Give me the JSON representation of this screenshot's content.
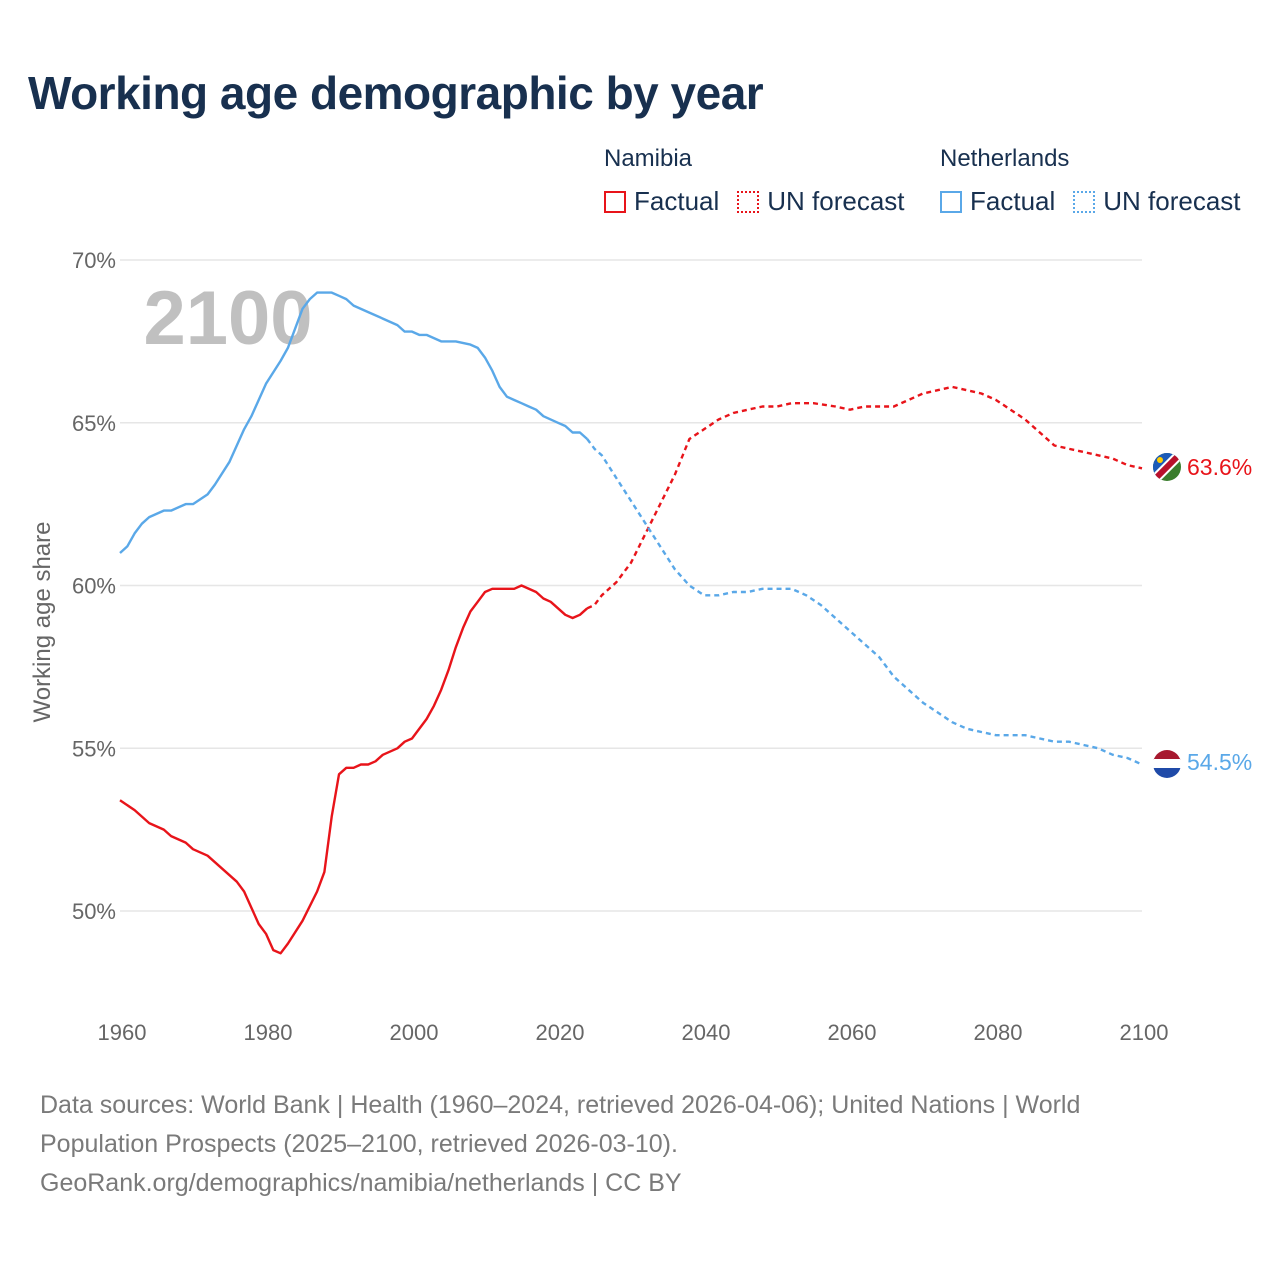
{
  "title": "Working age demographic by year",
  "legend": {
    "groups": [
      {
        "country": "Namibia",
        "factual_label": "Factual",
        "forecast_label": "UN forecast",
        "color": "#e8141a"
      },
      {
        "country": "Netherlands",
        "factual_label": "Factual",
        "forecast_label": "UN forecast",
        "color": "#5aa8e8"
      }
    ]
  },
  "sources": {
    "line1": "Data sources: World Bank | Health (1960–2024, retrieved 2026-04-06); United Nations | World",
    "line2": "Population Prospects (2025–2100, retrieved 2026-03-10).",
    "line3": "GeoRank.org/demographics/namibia/netherlands | CC BY"
  },
  "chart_data": {
    "type": "line",
    "title": "Working age demographic by year",
    "watermark_year": "2100",
    "ylabel": "Working age share",
    "xlabel": "",
    "xlim": [
      1960,
      2100
    ],
    "ylim": [
      47.5,
      70
    ],
    "x_ticks": [
      1960,
      1980,
      2000,
      2020,
      2040,
      2060,
      2080,
      2100
    ],
    "y_ticks": [
      {
        "value": 50,
        "label": "50%"
      },
      {
        "value": 55,
        "label": "55%"
      },
      {
        "value": 60,
        "label": "60%"
      },
      {
        "value": 65,
        "label": "65%"
      },
      {
        "value": 70,
        "label": "70%"
      }
    ],
    "forecast_start": 2024,
    "series": [
      {
        "name": "Namibia",
        "color": "#e8141a",
        "end_label": "63.6%",
        "flag": "namibia-flag",
        "points": [
          [
            1960,
            53.4
          ],
          [
            1962,
            53.1
          ],
          [
            1964,
            52.7
          ],
          [
            1966,
            52.5
          ],
          [
            1967,
            52.3
          ],
          [
            1969,
            52.1
          ],
          [
            1970,
            51.9
          ],
          [
            1972,
            51.7
          ],
          [
            1974,
            51.3
          ],
          [
            1976,
            50.9
          ],
          [
            1977,
            50.6
          ],
          [
            1978,
            50.1
          ],
          [
            1979,
            49.6
          ],
          [
            1980,
            49.3
          ],
          [
            1981,
            48.8
          ],
          [
            1982,
            48.7
          ],
          [
            1983,
            49.0
          ],
          [
            1985,
            49.7
          ],
          [
            1987,
            50.6
          ],
          [
            1988,
            51.2
          ],
          [
            1989,
            52.9
          ],
          [
            1990,
            54.2
          ],
          [
            1991,
            54.4
          ],
          [
            1992,
            54.4
          ],
          [
            1993,
            54.5
          ],
          [
            1994,
            54.5
          ],
          [
            1995,
            54.6
          ],
          [
            1996,
            54.8
          ],
          [
            1998,
            55.0
          ],
          [
            1999,
            55.2
          ],
          [
            2000,
            55.3
          ],
          [
            2002,
            55.9
          ],
          [
            2003,
            56.3
          ],
          [
            2004,
            56.8
          ],
          [
            2005,
            57.4
          ],
          [
            2006,
            58.1
          ],
          [
            2007,
            58.7
          ],
          [
            2008,
            59.2
          ],
          [
            2009,
            59.5
          ],
          [
            2010,
            59.8
          ],
          [
            2011,
            59.9
          ],
          [
            2014,
            59.9
          ],
          [
            2015,
            60.0
          ],
          [
            2017,
            59.8
          ],
          [
            2018,
            59.6
          ],
          [
            2019,
            59.5
          ],
          [
            2020,
            59.3
          ],
          [
            2021,
            59.1
          ],
          [
            2022,
            59.0
          ],
          [
            2023,
            59.1
          ],
          [
            2024,
            59.3
          ],
          [
            2025,
            59.4
          ],
          [
            2026,
            59.7
          ],
          [
            2028,
            60.1
          ],
          [
            2030,
            60.7
          ],
          [
            2032,
            61.6
          ],
          [
            2034,
            62.5
          ],
          [
            2036,
            63.4
          ],
          [
            2038,
            64.5
          ],
          [
            2040,
            64.8
          ],
          [
            2042,
            65.1
          ],
          [
            2044,
            65.3
          ],
          [
            2046,
            65.4
          ],
          [
            2048,
            65.5
          ],
          [
            2050,
            65.5
          ],
          [
            2052,
            65.6
          ],
          [
            2055,
            65.6
          ],
          [
            2058,
            65.5
          ],
          [
            2060,
            65.4
          ],
          [
            2062,
            65.5
          ],
          [
            2066,
            65.5
          ],
          [
            2068,
            65.7
          ],
          [
            2070,
            65.9
          ],
          [
            2072,
            66.0
          ],
          [
            2074,
            66.1
          ],
          [
            2076,
            66.0
          ],
          [
            2078,
            65.9
          ],
          [
            2080,
            65.7
          ],
          [
            2082,
            65.4
          ],
          [
            2084,
            65.1
          ],
          [
            2086,
            64.7
          ],
          [
            2088,
            64.3
          ],
          [
            2090,
            64.2
          ],
          [
            2092,
            64.1
          ],
          [
            2094,
            64.0
          ],
          [
            2096,
            63.9
          ],
          [
            2098,
            63.7
          ],
          [
            2100,
            63.6
          ]
        ]
      },
      {
        "name": "Netherlands",
        "color": "#5aa8e8",
        "end_label": "54.5%",
        "flag": "netherlands-flag",
        "points": [
          [
            1960,
            61.0
          ],
          [
            1961,
            61.2
          ],
          [
            1962,
            61.6
          ],
          [
            1963,
            61.9
          ],
          [
            1964,
            62.1
          ],
          [
            1966,
            62.3
          ],
          [
            1967,
            62.3
          ],
          [
            1969,
            62.5
          ],
          [
            1970,
            62.5
          ],
          [
            1972,
            62.8
          ],
          [
            1973,
            63.1
          ],
          [
            1975,
            63.8
          ],
          [
            1976,
            64.3
          ],
          [
            1977,
            64.8
          ],
          [
            1978,
            65.2
          ],
          [
            1979,
            65.7
          ],
          [
            1980,
            66.2
          ],
          [
            1982,
            66.9
          ],
          [
            1983,
            67.3
          ],
          [
            1984,
            67.9
          ],
          [
            1985,
            68.5
          ],
          [
            1986,
            68.8
          ],
          [
            1987,
            69.0
          ],
          [
            1988,
            69.0
          ],
          [
            1989,
            69.0
          ],
          [
            1990,
            68.9
          ],
          [
            1991,
            68.8
          ],
          [
            1992,
            68.6
          ],
          [
            1994,
            68.4
          ],
          [
            1996,
            68.2
          ],
          [
            1998,
            68.0
          ],
          [
            1999,
            67.8
          ],
          [
            2000,
            67.8
          ],
          [
            2001,
            67.7
          ],
          [
            2002,
            67.7
          ],
          [
            2004,
            67.5
          ],
          [
            2006,
            67.5
          ],
          [
            2008,
            67.4
          ],
          [
            2009,
            67.3
          ],
          [
            2010,
            67.0
          ],
          [
            2011,
            66.6
          ],
          [
            2012,
            66.1
          ],
          [
            2013,
            65.8
          ],
          [
            2014,
            65.7
          ],
          [
            2015,
            65.6
          ],
          [
            2016,
            65.5
          ],
          [
            2017,
            65.4
          ],
          [
            2018,
            65.2
          ],
          [
            2020,
            65.0
          ],
          [
            2021,
            64.9
          ],
          [
            2022,
            64.7
          ],
          [
            2023,
            64.7
          ],
          [
            2024,
            64.5
          ],
          [
            2025,
            64.2
          ],
          [
            2026,
            64.0
          ],
          [
            2028,
            63.3
          ],
          [
            2030,
            62.6
          ],
          [
            2032,
            61.9
          ],
          [
            2034,
            61.2
          ],
          [
            2036,
            60.5
          ],
          [
            2038,
            60.0
          ],
          [
            2040,
            59.7
          ],
          [
            2042,
            59.7
          ],
          [
            2044,
            59.8
          ],
          [
            2046,
            59.8
          ],
          [
            2048,
            59.9
          ],
          [
            2050,
            59.9
          ],
          [
            2052,
            59.9
          ],
          [
            2054,
            59.7
          ],
          [
            2056,
            59.4
          ],
          [
            2058,
            59.0
          ],
          [
            2060,
            58.6
          ],
          [
            2062,
            58.2
          ],
          [
            2064,
            57.8
          ],
          [
            2066,
            57.2
          ],
          [
            2068,
            56.8
          ],
          [
            2070,
            56.4
          ],
          [
            2072,
            56.1
          ],
          [
            2074,
            55.8
          ],
          [
            2076,
            55.6
          ],
          [
            2078,
            55.5
          ],
          [
            2080,
            55.4
          ],
          [
            2084,
            55.4
          ],
          [
            2086,
            55.3
          ],
          [
            2088,
            55.2
          ],
          [
            2090,
            55.2
          ],
          [
            2092,
            55.1
          ],
          [
            2094,
            55.0
          ],
          [
            2096,
            54.8
          ],
          [
            2098,
            54.7
          ],
          [
            2100,
            54.5
          ]
        ]
      }
    ]
  }
}
